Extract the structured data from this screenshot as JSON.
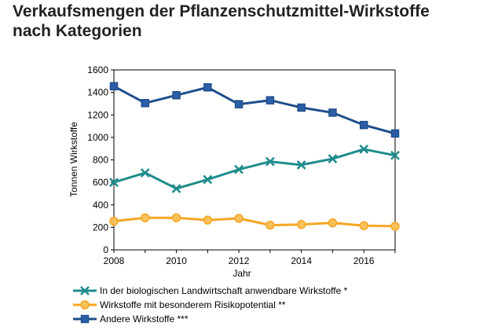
{
  "title": {
    "line1": "Verkaufsmengen der Pflanzenschutzmittel-Wirkstoffe",
    "line2": "nach Kategorien"
  },
  "colors": {
    "bio": "#1f8c8c",
    "risk": "#f5a623",
    "risk_fill": "#f9c15a",
    "other": "#1f4e8c",
    "other_fill": "#2c5fa8"
  },
  "chart_data": {
    "type": "line",
    "xlabel": "Jahr",
    "ylabel": "Tonnen Wirkstoffe",
    "xlim": [
      2008,
      2017
    ],
    "ylim": [
      0,
      1600
    ],
    "xticks": [
      2008,
      2010,
      2012,
      2014,
      2016
    ],
    "yticks": [
      0,
      200,
      400,
      600,
      800,
      1000,
      1200,
      1400,
      1600
    ],
    "grid": false,
    "legend_position": "bottom",
    "x": [
      2008,
      2009,
      2010,
      2011,
      2012,
      2013,
      2014,
      2015,
      2016,
      2017
    ],
    "series": [
      {
        "name": "In der biologischen Landwirtschaft anwendbare Wirkstoffe *",
        "marker": "x",
        "color": "#1f8c8c",
        "values": [
          600,
          685,
          545,
          625,
          715,
          785,
          755,
          810,
          895,
          840
        ]
      },
      {
        "name": "Wirkstoffe mit besonderem Risikopotential **",
        "marker": "circle",
        "color": "#f5a623",
        "values": [
          255,
          285,
          285,
          265,
          280,
          220,
          225,
          240,
          215,
          210
        ]
      },
      {
        "name": "Andere Wirkstoffe ***",
        "marker": "square",
        "color": "#1f4e8c",
        "values": [
          1455,
          1305,
          1375,
          1445,
          1295,
          1330,
          1265,
          1220,
          1110,
          1035
        ]
      }
    ]
  }
}
